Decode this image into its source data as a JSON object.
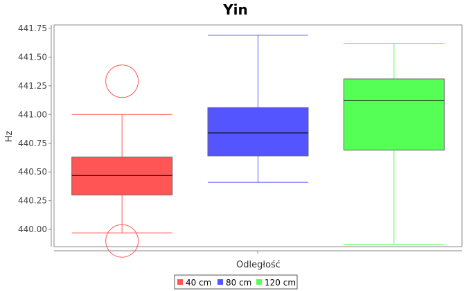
{
  "chart_data": {
    "type": "boxplot",
    "title": "Yin",
    "xlabel": "Odległość",
    "ylabel": "Hz",
    "ylim": [
      439.85,
      441.78
    ],
    "yticks": [
      "440.00",
      "440.25",
      "440.50",
      "440.75",
      "441.00",
      "441.25",
      "441.50",
      "441.75"
    ],
    "grid": false,
    "legend_position": "bottom",
    "series": [
      {
        "name": "40 cm",
        "color": "#ff5555",
        "whisker_low": 439.97,
        "q1": 440.3,
        "median": 440.47,
        "q3": 440.63,
        "whisker_high": 441.0,
        "outliers": [
          441.29,
          439.9
        ]
      },
      {
        "name": "80 cm",
        "color": "#5555ff",
        "whisker_low": 440.41,
        "q1": 440.64,
        "median": 440.84,
        "q3": 441.06,
        "whisker_high": 441.69,
        "outliers": []
      },
      {
        "name": "120 cm",
        "color": "#55ff55",
        "whisker_low": 439.87,
        "q1": 440.69,
        "median": 441.12,
        "q3": 441.31,
        "whisker_high": 441.62,
        "outliers": []
      }
    ]
  }
}
